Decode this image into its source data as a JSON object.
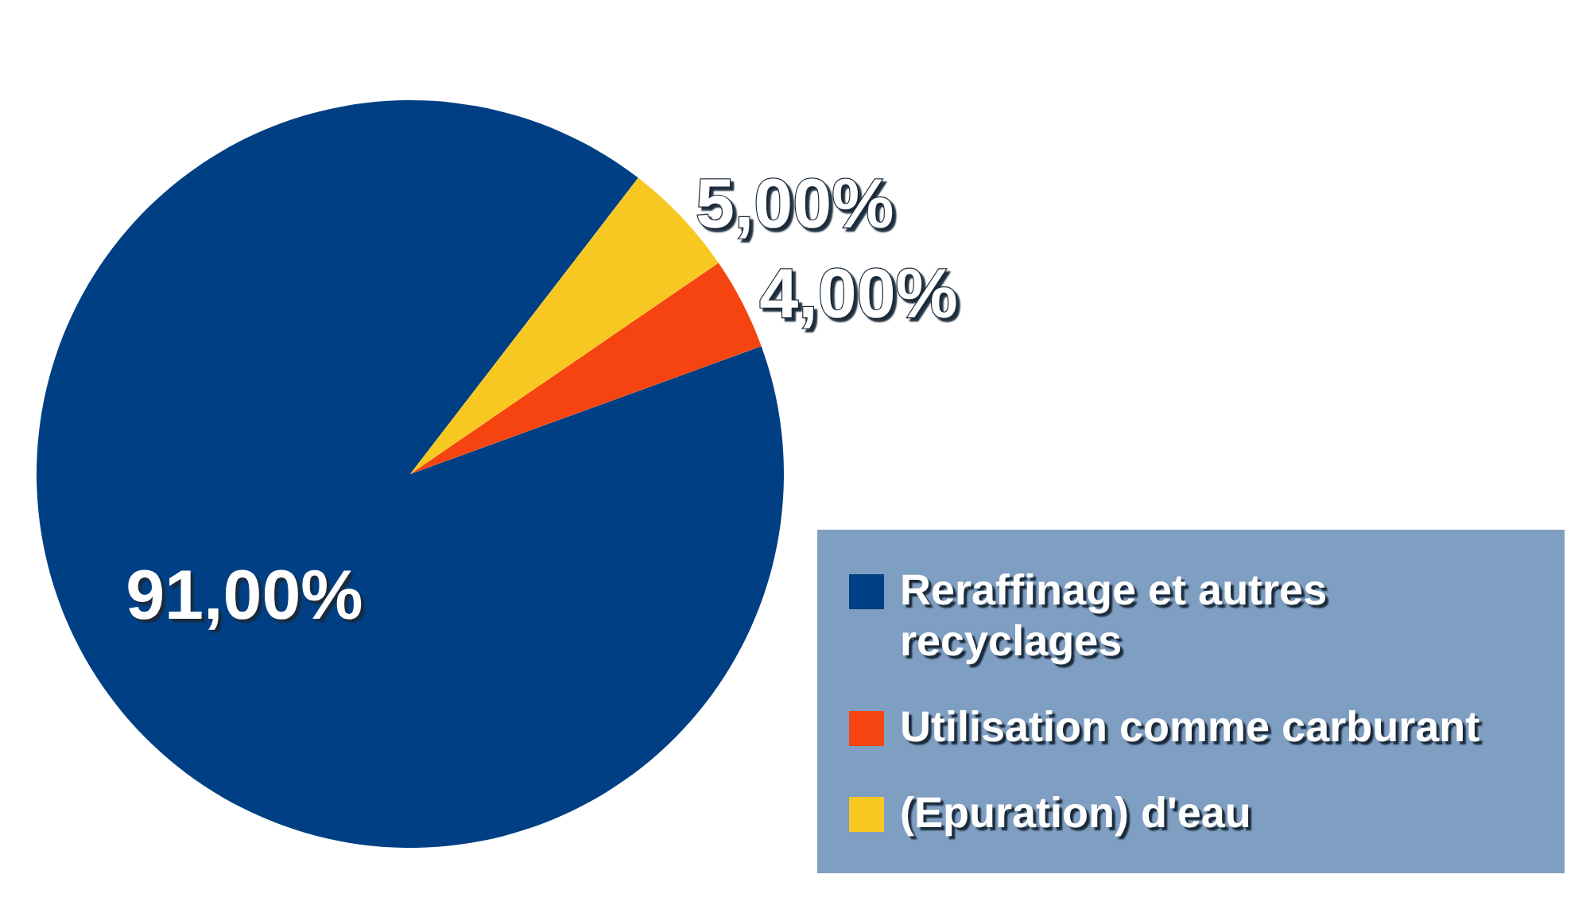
{
  "chart_data": {
    "type": "pie",
    "categories": [
      "Reraffinage et autres recyclages",
      "Utilisation comme carburant",
      "(Epuration) d'eau"
    ],
    "values": [
      91,
      4,
      5
    ],
    "colors": [
      "#003f83",
      "#f5440f",
      "#f8c822"
    ],
    "value_labels": [
      "91,00%",
      "4,00%",
      "5,00%"
    ],
    "legend": "bottom right"
  }
}
